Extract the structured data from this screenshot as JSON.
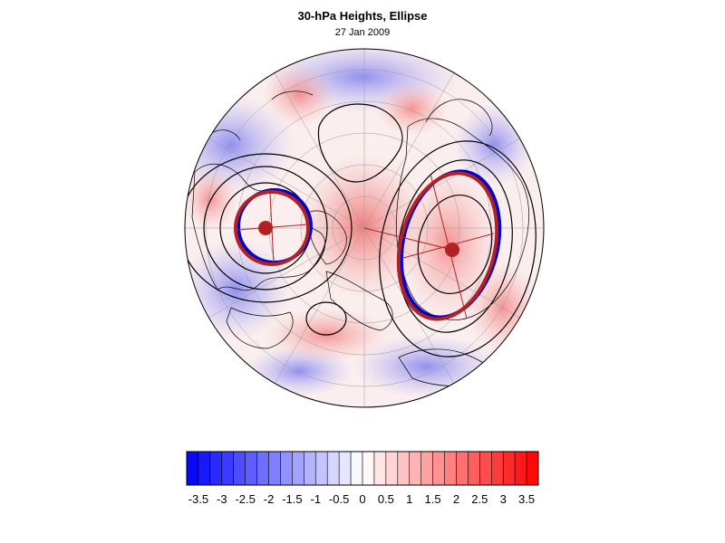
{
  "title": "30-hPa Heights, Ellipse",
  "date": "27 Jan 2009",
  "colorbar": {
    "labels": [
      "-3.5",
      "-3",
      "-2.5",
      "-2",
      "-1.5",
      "-1",
      "-0.5",
      "0",
      "0.5",
      "1",
      "1.5",
      "2",
      "2.5",
      "3",
      "3.5"
    ],
    "min": -3.75,
    "max": 3.75,
    "step": 0.25
  },
  "colors": {
    "negative": "#0000ff",
    "positive": "#ff0000",
    "ellipse_red": "#b22222",
    "ellipse_blue": "#0000cc",
    "contour": "#000000"
  }
}
